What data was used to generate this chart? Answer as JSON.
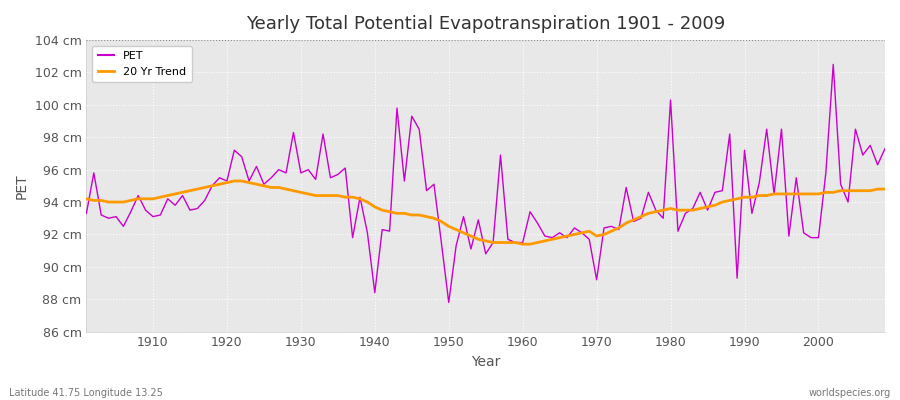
{
  "title": "Yearly Total Potential Evapotranspiration 1901 - 2009",
  "xlabel": "Year",
  "ylabel": "PET",
  "lat_lon_label": "Latitude 41.75 Longitude 13.25",
  "website_label": "worldspecies.org",
  "pet_color": "#cc00cc",
  "trend_color": "#ff9900",
  "bg_color": "#ffffff",
  "plot_bg_color": "#e8e8e8",
  "ylim": [
    86,
    104
  ],
  "ytick_step": 2,
  "years": [
    1901,
    1902,
    1903,
    1904,
    1905,
    1906,
    1907,
    1908,
    1909,
    1910,
    1911,
    1912,
    1913,
    1914,
    1915,
    1916,
    1917,
    1918,
    1919,
    1920,
    1921,
    1922,
    1923,
    1924,
    1925,
    1926,
    1927,
    1928,
    1929,
    1930,
    1931,
    1932,
    1933,
    1934,
    1935,
    1936,
    1937,
    1938,
    1939,
    1940,
    1941,
    1942,
    1943,
    1944,
    1945,
    1946,
    1947,
    1948,
    1949,
    1950,
    1951,
    1952,
    1953,
    1954,
    1955,
    1956,
    1957,
    1958,
    1959,
    1960,
    1961,
    1962,
    1963,
    1964,
    1965,
    1966,
    1967,
    1968,
    1969,
    1970,
    1971,
    1972,
    1973,
    1974,
    1975,
    1976,
    1977,
    1978,
    1979,
    1980,
    1981,
    1982,
    1983,
    1984,
    1985,
    1986,
    1987,
    1988,
    1989,
    1990,
    1991,
    1992,
    1993,
    1994,
    1995,
    1996,
    1997,
    1998,
    1999,
    2000,
    2001,
    2002,
    2003,
    2004,
    2005,
    2006,
    2007,
    2008,
    2009
  ],
  "pet_values": [
    93.3,
    95.8,
    93.2,
    93.0,
    93.1,
    92.5,
    93.4,
    94.4,
    93.5,
    93.1,
    93.2,
    94.2,
    93.8,
    94.4,
    93.5,
    93.6,
    94.1,
    95.0,
    95.5,
    95.3,
    97.2,
    96.8,
    95.3,
    96.2,
    95.1,
    95.5,
    96.0,
    95.8,
    98.3,
    95.8,
    96.0,
    95.4,
    98.2,
    95.5,
    95.7,
    96.1,
    91.8,
    94.3,
    92.1,
    88.4,
    92.3,
    92.2,
    99.8,
    95.3,
    99.3,
    98.5,
    94.7,
    95.1,
    91.5,
    87.8,
    91.3,
    93.1,
    91.1,
    92.9,
    90.8,
    91.5,
    96.9,
    91.7,
    91.5,
    91.5,
    93.4,
    92.7,
    91.9,
    91.8,
    92.1,
    91.8,
    92.4,
    92.1,
    91.7,
    89.2,
    92.4,
    92.5,
    92.3,
    94.9,
    92.8,
    93.0,
    94.6,
    93.5,
    93.0,
    100.3,
    92.2,
    93.3,
    93.6,
    94.6,
    93.5,
    94.6,
    94.7,
    98.2,
    89.3,
    97.2,
    93.3,
    95.2,
    98.5,
    94.5,
    98.5,
    91.9,
    95.5,
    92.1,
    91.8,
    91.8,
    95.8,
    102.5,
    95.1,
    94.0,
    98.5,
    96.9,
    97.5,
    96.3,
    97.3
  ],
  "trend_values": [
    94.2,
    94.1,
    94.1,
    94.0,
    94.0,
    94.0,
    94.1,
    94.2,
    94.2,
    94.2,
    94.3,
    94.4,
    94.5,
    94.6,
    94.7,
    94.8,
    94.9,
    95.0,
    95.1,
    95.2,
    95.3,
    95.3,
    95.2,
    95.1,
    95.0,
    94.9,
    94.9,
    94.8,
    94.7,
    94.6,
    94.5,
    94.4,
    94.4,
    94.4,
    94.4,
    94.3,
    94.3,
    94.2,
    94.0,
    93.7,
    93.5,
    93.4,
    93.3,
    93.3,
    93.2,
    93.2,
    93.1,
    93.0,
    92.8,
    92.5,
    92.3,
    92.1,
    91.9,
    91.7,
    91.6,
    91.5,
    91.5,
    91.5,
    91.5,
    91.4,
    91.4,
    91.5,
    91.6,
    91.7,
    91.8,
    91.9,
    92.0,
    92.1,
    92.2,
    91.9,
    92.0,
    92.2,
    92.4,
    92.7,
    92.9,
    93.1,
    93.3,
    93.4,
    93.5,
    93.6,
    93.5,
    93.5,
    93.5,
    93.6,
    93.7,
    93.8,
    94.0,
    94.1,
    94.2,
    94.3,
    94.3,
    94.4,
    94.4,
    94.5,
    94.5,
    94.5,
    94.5,
    94.5,
    94.5,
    94.5,
    94.6,
    94.6,
    94.7,
    94.7,
    94.7,
    94.7,
    94.7,
    94.8,
    94.8
  ]
}
